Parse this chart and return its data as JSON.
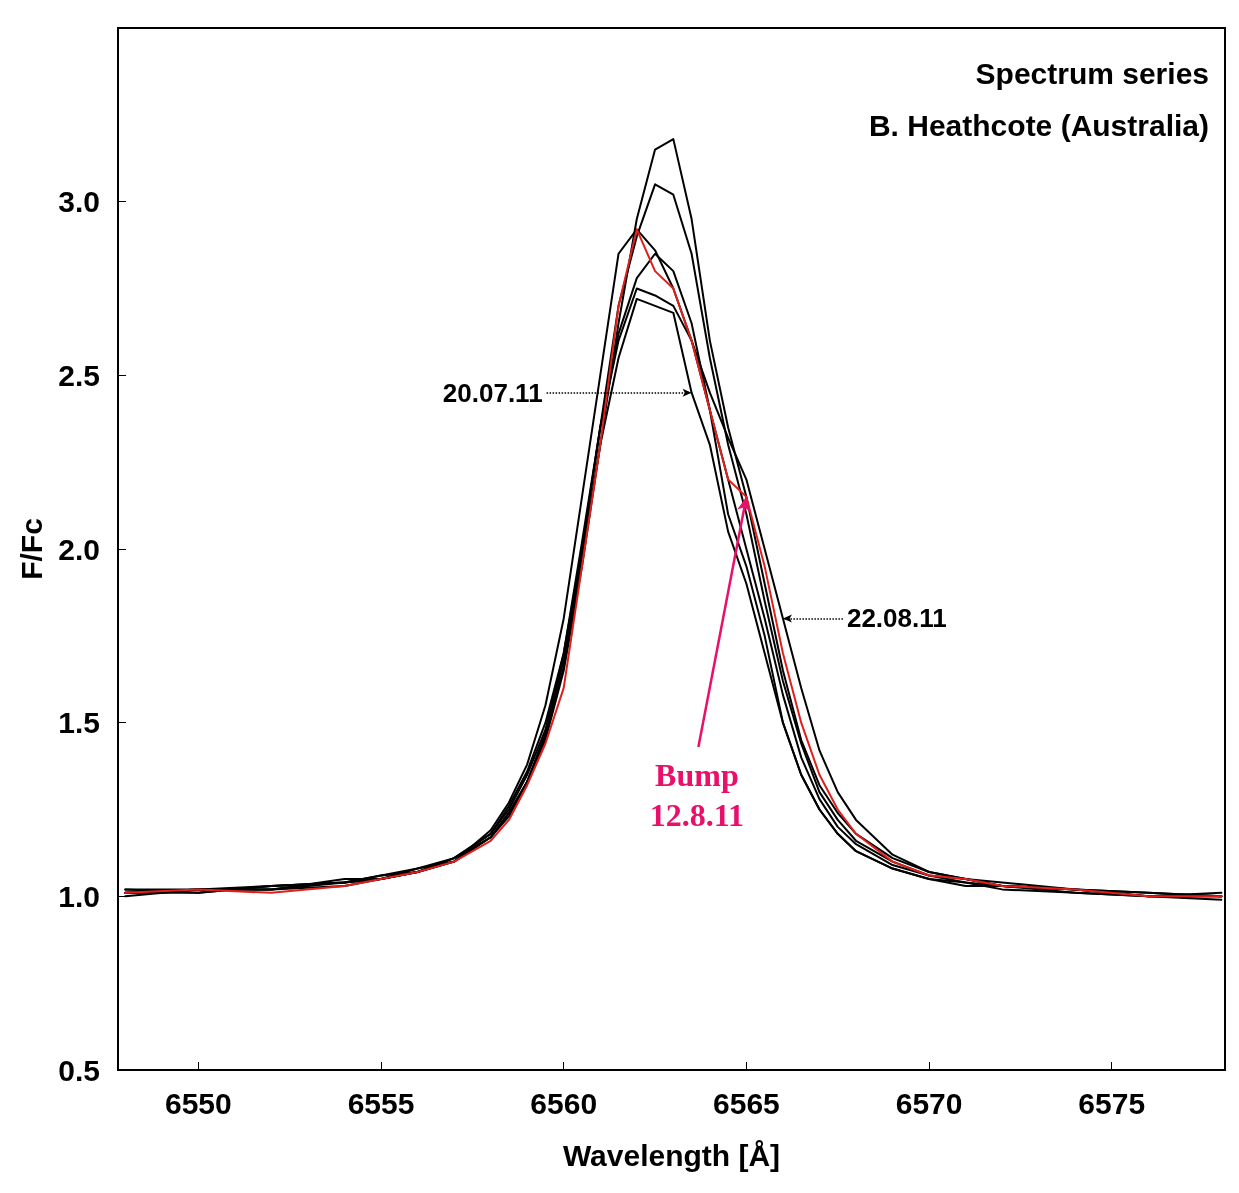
{
  "chart_data": {
    "type": "line",
    "xlabel": "Wavelength [Å]",
    "ylabel": "F/Fc",
    "xlim": [
      6547.8,
      6578.1
    ],
    "ylim": [
      0.5,
      3.5
    ],
    "xticks": [
      6550,
      6555,
      6560,
      6565,
      6570,
      6575
    ],
    "yticks": [
      {
        "value": 0.5,
        "label": "0.5"
      },
      {
        "value": 1,
        "label": "1.0"
      },
      {
        "value": 1.5,
        "label": "1.5"
      },
      {
        "value": 2,
        "label": "2.0"
      },
      {
        "value": 2.5,
        "label": "2.5"
      },
      {
        "value": 3,
        "label": "3.0"
      }
    ],
    "grid": false,
    "marker": "none",
    "line_style": "solid",
    "x": [
      6548,
      6550,
      6552,
      6554,
      6555,
      6556,
      6557,
      6558,
      6558.5,
      6559,
      6559.5,
      6560,
      6560.5,
      6561,
      6561.5,
      6562,
      6562.5,
      6563,
      6563.5,
      6564,
      6564.5,
      6565,
      6565.5,
      6566,
      6566.5,
      6567,
      6567.5,
      6568,
      6569,
      6570,
      6571,
      6572,
      6574,
      6576,
      6578
    ],
    "series": [
      {
        "color": "#000000",
        "values": [
          1.01,
          1.02,
          1.02,
          1.04,
          1.05,
          1.07,
          1.1,
          1.17,
          1.24,
          1.33,
          1.45,
          1.65,
          1.95,
          2.3,
          2.65,
          2.95,
          3.15,
          3.18,
          2.95,
          2.6,
          2.35,
          2.15,
          1.9,
          1.65,
          1.45,
          1.32,
          1.24,
          1.18,
          1.11,
          1.07,
          1.05,
          1.04,
          1.02,
          1.01,
          1.0
        ]
      },
      {
        "color": "#000000",
        "values": [
          1.02,
          1.01,
          1.03,
          1.04,
          1.06,
          1.07,
          1.11,
          1.18,
          1.25,
          1.35,
          1.48,
          1.7,
          2.0,
          2.35,
          2.7,
          2.9,
          3.05,
          3.02,
          2.85,
          2.55,
          2.3,
          2.1,
          1.85,
          1.62,
          1.44,
          1.3,
          1.22,
          1.16,
          1.1,
          1.06,
          1.05,
          1.03,
          1.02,
          1.0,
          1.01
        ]
      },
      {
        "color": "#000000",
        "values": [
          1.0,
          1.02,
          1.02,
          1.03,
          1.05,
          1.07,
          1.1,
          1.19,
          1.27,
          1.38,
          1.55,
          1.8,
          2.15,
          2.5,
          2.85,
          2.92,
          2.86,
          2.75,
          2.6,
          2.4,
          2.2,
          2.0,
          1.8,
          1.58,
          1.4,
          1.28,
          1.2,
          1.15,
          1.09,
          1.06,
          1.04,
          1.03,
          1.02,
          1.0,
          0.99
        ]
      },
      {
        "color": "#000000",
        "values": [
          1.01,
          1.01,
          1.03,
          1.04,
          1.05,
          1.08,
          1.1,
          1.17,
          1.24,
          1.33,
          1.47,
          1.68,
          2.0,
          2.35,
          2.62,
          2.78,
          2.85,
          2.8,
          2.65,
          2.4,
          2.1,
          1.95,
          1.75,
          1.5,
          1.35,
          1.25,
          1.18,
          1.13,
          1.08,
          1.05,
          1.04,
          1.02,
          1.01,
          1.0,
          1.0
        ]
      },
      {
        "color": "#000000",
        "values": [
          1.02,
          1.02,
          1.02,
          1.05,
          1.05,
          1.07,
          1.11,
          1.17,
          1.23,
          1.33,
          1.46,
          1.66,
          1.98,
          2.3,
          2.55,
          2.72,
          2.7,
          2.68,
          2.45,
          2.3,
          2.05,
          1.9,
          1.7,
          1.5,
          1.35,
          1.25,
          1.18,
          1.13,
          1.08,
          1.05,
          1.03,
          1.03,
          1.01,
          1.0,
          1.0
        ]
      },
      {
        "color": "#000000",
        "values": [
          1.01,
          1.02,
          1.03,
          1.04,
          1.06,
          1.08,
          1.11,
          1.18,
          1.26,
          1.36,
          1.5,
          1.7,
          2.02,
          2.35,
          2.6,
          2.75,
          2.73,
          2.7,
          2.6,
          2.45,
          2.32,
          2.2,
          2.0,
          1.8,
          1.6,
          1.42,
          1.3,
          1.22,
          1.12,
          1.07,
          1.05,
          1.03,
          1.02,
          1.01,
          1.0
        ]
      },
      {
        "color": "#e0201c",
        "values": [
          1.01,
          1.02,
          1.01,
          1.03,
          1.05,
          1.07,
          1.1,
          1.16,
          1.22,
          1.32,
          1.44,
          1.6,
          1.95,
          2.3,
          2.7,
          2.92,
          2.8,
          2.75,
          2.6,
          2.4,
          2.2,
          2.15,
          1.95,
          1.7,
          1.5,
          1.35,
          1.25,
          1.18,
          1.1,
          1.06,
          1.05,
          1.03,
          1.02,
          1.0,
          1.0
        ]
      }
    ],
    "annotations": [
      "Spectrum series",
      "B. Heathcote (Australia)",
      {
        "text": "20.07.11",
        "x": 6563.5,
        "y": 2.45
      },
      {
        "text": "22.08.11",
        "x": 6566,
        "y": 1.8
      },
      {
        "text": "Bump\n12.8.11",
        "x": 6565,
        "y": 2.15
      }
    ]
  }
}
